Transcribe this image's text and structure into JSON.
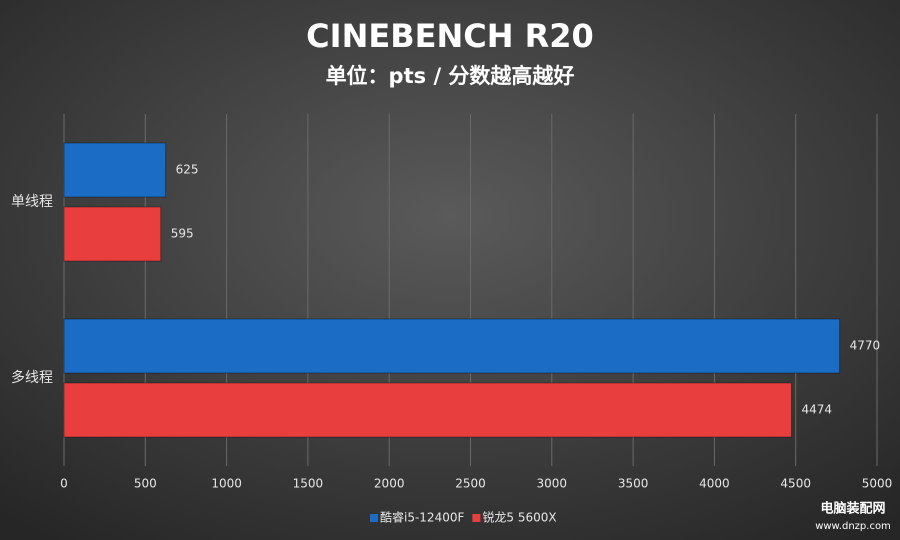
{
  "chart_data": {
    "type": "hbar",
    "title": "CINEBENCH R20",
    "subtitle": "单位：pts / 分数越高越好",
    "categories": [
      "单线程",
      "多线程"
    ],
    "series": [
      {
        "name": "酷睿i5-12400F",
        "color": "#1b6cc4",
        "values": [
          625,
          4770
        ]
      },
      {
        "name": "锐龙5 5600X",
        "color": "#e83e3e",
        "values": [
          595,
          4474
        ]
      }
    ],
    "xlim": [
      0,
      5000
    ],
    "xticks": [
      0,
      500,
      1000,
      1500,
      2000,
      2500,
      3000,
      3500,
      4000,
      4500,
      5000
    ],
    "grid": true,
    "legend": "bottom",
    "watermark": [
      "电脑装配网",
      "www.dnzp.com"
    ]
  }
}
